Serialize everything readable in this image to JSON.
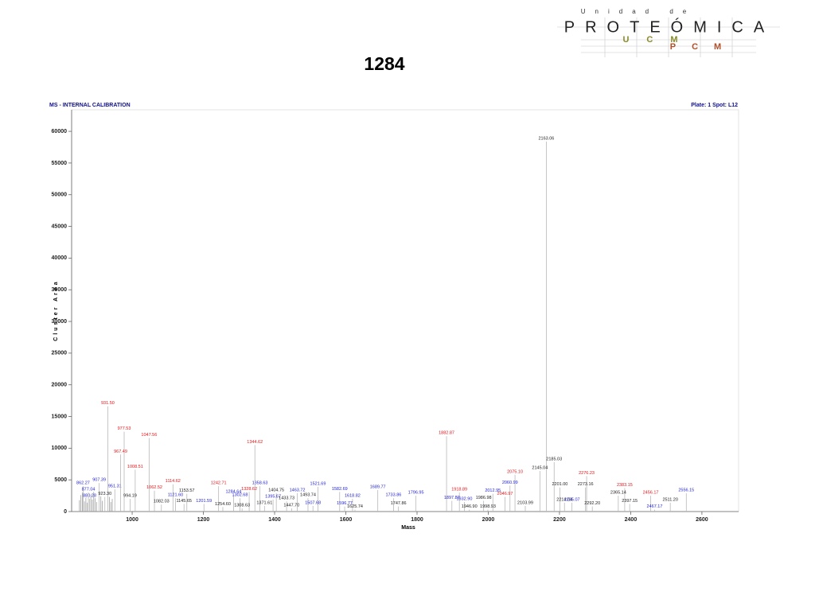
{
  "logo": {
    "subtitle": "Unidad de",
    "name": "PROTEÓMICA",
    "ucm": "UCM",
    "pcm": "PCM"
  },
  "chart_data": {
    "type": "spectrum",
    "title": "1284",
    "subtitle_left": "MS - INTERNAL CALIBRATION",
    "subtitle_right": "Plate: 1 Spot: L12",
    "xlabel": "Mass",
    "ylabel": "Cluster Area",
    "xlim": [
      830,
      2703
    ],
    "ylim": [
      0,
      63400
    ],
    "xticks": [
      1000,
      1200,
      1400,
      1600,
      1800,
      2000,
      2200,
      2400,
      2600
    ],
    "yticks": [
      0,
      5000,
      10000,
      15000,
      20000,
      25000,
      30000,
      35000,
      40000,
      45000,
      50000,
      55000,
      60000
    ],
    "series": [
      {
        "x": [
          {
            "value": 862.27,
            "label": "862.27"
          },
          {
            "value": 880.28,
            "label": "880.28"
          },
          {
            "value": 907.39,
            "label": "907.39"
          },
          {
            "value": 877.04,
            "label": "877.04"
          },
          {
            "value": 931.5,
            "label": "931.50"
          },
          {
            "value": 951.31,
            "label": "951.31"
          },
          {
            "value": 923.3,
            "label": "923.30"
          },
          {
            "value": 977.53,
            "label": "977.53"
          },
          {
            "value": 967.49,
            "label": "967.49"
          },
          {
            "value": 1008.51,
            "label": "1008.51"
          },
          {
            "value": 1047.56,
            "label": "1047.56"
          },
          {
            "value": 994.19,
            "label": "994.19"
          },
          {
            "value": 1062.52,
            "label": "1062.52"
          },
          {
            "value": 1114.62,
            "label": "1114.62"
          },
          {
            "value": 1082.03,
            "label": "1082.03"
          },
          {
            "value": 1121.6,
            "label": "1121.60"
          },
          {
            "value": 1153.57,
            "label": "1153.57"
          },
          {
            "value": 1145.65,
            "label": "1145.65"
          },
          {
            "value": 1242.71,
            "label": "1242.71"
          },
          {
            "value": 1284.64,
            "label": "1284.64"
          },
          {
            "value": 1201.59,
            "label": "1201.59"
          },
          {
            "value": 1254.6,
            "label": "1254.60"
          },
          {
            "value": 1358.63,
            "label": "1358.63"
          },
          {
            "value": 1328.62,
            "label": "1328.62"
          },
          {
            "value": 1302.68,
            "label": "1302.68"
          },
          {
            "value": 1308.63,
            "label": "1308.63"
          },
          {
            "value": 1344.62,
            "label": "1344.62"
          },
          {
            "value": 1404.75,
            "label": "1404.75"
          },
          {
            "value": 1395.67,
            "label": "1395.67"
          },
          {
            "value": 1371.61,
            "label": "1371.61"
          },
          {
            "value": 1433.73,
            "label": "1433.73"
          },
          {
            "value": 1463.72,
            "label": "1463.72"
          },
          {
            "value": 1447.7,
            "label": "1447.70"
          },
          {
            "value": 1521.69,
            "label": "1521.69"
          },
          {
            "value": 1493.74,
            "label": "1493.74"
          },
          {
            "value": 1507.68,
            "label": "1507.68"
          },
          {
            "value": 1582.69,
            "label": "1582.69"
          },
          {
            "value": 1596.77,
            "label": "1596.77"
          },
          {
            "value": 1618.82,
            "label": "1618.82"
          },
          {
            "value": 1625.74,
            "label": "1625.74"
          },
          {
            "value": 1689.77,
            "label": "1689.77"
          },
          {
            "value": 1733.86,
            "label": "1733.86"
          },
          {
            "value": 1747.86,
            "label": "1747.86"
          },
          {
            "value": 1796.95,
            "label": "1796.95"
          },
          {
            "value": 1882.87,
            "label": "1882.87"
          },
          {
            "value": 1918.89,
            "label": "1918.89"
          },
          {
            "value": 1897.87,
            "label": "1897.87"
          },
          {
            "value": 1932.9,
            "label": "1932.90"
          },
          {
            "value": 1946.9,
            "label": "1946.90"
          },
          {
            "value": 2012.95,
            "label": "2012.95"
          },
          {
            "value": 1986.98,
            "label": "1986.98"
          },
          {
            "value": 1998.93,
            "label": "1998.93"
          },
          {
            "value": 2075.1,
            "label": "2075.10"
          },
          {
            "value": 2060.99,
            "label": "2060.99"
          },
          {
            "value": 2046.97,
            "label": "2046.97"
          },
          {
            "value": 2103.99,
            "label": "2103.99"
          },
          {
            "value": 2163.06,
            "label": "2163.06"
          },
          {
            "value": 2145.04,
            "label": "2145.04"
          },
          {
            "value": 2185.03,
            "label": "2185.03"
          },
          {
            "value": 2201,
            "label": "2201.00"
          },
          {
            "value": 2214.04,
            "label": "2214.04"
          },
          {
            "value": 2276.23,
            "label": "2276.23"
          },
          {
            "value": 2273.16,
            "label": "2273.16"
          },
          {
            "value": 2235.07,
            "label": "2235.07"
          },
          {
            "value": 2292.2,
            "label": "2292.20"
          },
          {
            "value": 2383.15,
            "label": "2383.15"
          },
          {
            "value": 2365.14,
            "label": "2365.14"
          },
          {
            "value": 2397.15,
            "label": "2397.15"
          },
          {
            "value": 2456.17,
            "label": "2456.17"
          },
          {
            "value": 2467.17,
            "label": "2467.17"
          },
          {
            "value": 2511.2,
            "label": "2511.20"
          },
          {
            "value": 2556.15,
            "label": "2556.15"
          }
        ],
        "values": [
          4000,
          2000,
          4500,
          3000,
          16600,
          3500,
          2300,
          12600,
          9000,
          6600,
          11600,
          2000,
          3300,
          4300,
          1100,
          2100,
          2800,
          1200,
          4000,
          2600,
          1200,
          700,
          4000,
          3100,
          2100,
          500,
          10500,
          2900,
          1900,
          900,
          1600,
          2900,
          500,
          3900,
          2100,
          900,
          3100,
          800,
          2000,
          300,
          3400,
          2100,
          800,
          2500,
          11900,
          3000,
          1700,
          1500,
          300,
          2800,
          1700,
          300,
          5800,
          4100,
          2300,
          900,
          58400,
          6400,
          7800,
          3800,
          1400,
          5600,
          3800,
          1400,
          800,
          3700,
          2500,
          1200,
          2500,
          300,
          1400,
          2900
        ],
        "colors": [
          "#1e1ed2",
          "#1e1ed2",
          "#1e1ed2",
          "#1e1ed2",
          "#e3161b",
          "#1e1ed2",
          "#222222",
          "#e3161b",
          "#e3161b",
          "#e3161b",
          "#e3161b",
          "#222222",
          "#e3161b",
          "#e3161b",
          "#222222",
          "#1e1ed2",
          "#222222",
          "#222222",
          "#e3161b",
          "#1e1ed2",
          "#1e1ed2",
          "#222222",
          "#1e1ed2",
          "#e3161b",
          "#1e1ed2",
          "#222222",
          "#e3161b",
          "#222222",
          "#1e1ed2",
          "#222222",
          "#222222",
          "#1e1ed2",
          "#222222",
          "#1e1ed2",
          "#222222",
          "#1e1ed2",
          "#1e1ed2",
          "#1e1ed2",
          "#1e1ed2",
          "#222222",
          "#1e1ed2",
          "#1e1ed2",
          "#222222",
          "#1e1ed2",
          "#e3161b",
          "#e3161b",
          "#1e1ed2",
          "#1e1ed2",
          "#222222",
          "#1e1ed2",
          "#222222",
          "#222222",
          "#e3161b",
          "#1e1ed2",
          "#e3161b",
          "#222222",
          "#222222",
          "#222222",
          "#222222",
          "#222222",
          "#222222",
          "#e3161b",
          "#222222",
          "#1e1ed2",
          "#222222",
          "#e3161b",
          "#222222",
          "#222222",
          "#e3161b",
          "#1e1ed2",
          "#222222",
          "#1e1ed2"
        ]
      },
      {
        "x": [
          852,
          856,
          860,
          866,
          870,
          874,
          884,
          888,
          892,
          896,
          900,
          912,
          916,
          936,
          940,
          944
        ],
        "values": [
          1800,
          2600,
          3000,
          1600,
          2200,
          1400,
          2700,
          1900,
          3100,
          2100,
          1500,
          2400,
          1700,
          2300,
          1500,
          2000
        ],
        "color": "#a0a0a0"
      }
    ]
  }
}
